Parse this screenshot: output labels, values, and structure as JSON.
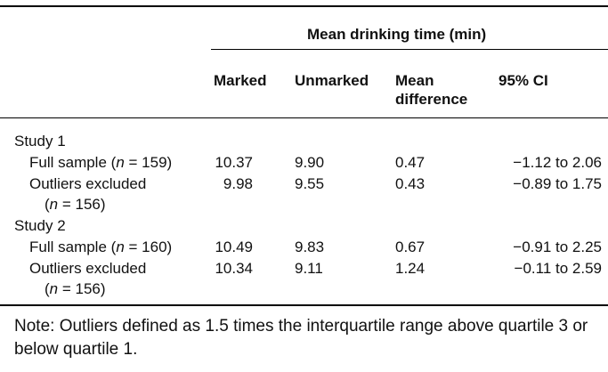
{
  "header": {
    "group_label": "Mean drinking time (min)",
    "columns": {
      "marked": "Marked",
      "unmarked": "Unmarked",
      "mean_diff_line1": "Mean",
      "mean_diff_line2": "difference",
      "ci": "95% CI"
    }
  },
  "studies": [
    {
      "label": "Study 1",
      "rows": [
        {
          "label_pre": "Full sample (",
          "label_n": "n",
          "label_post": " = 159)",
          "marked": "10.37",
          "unmarked": "9.90",
          "diff": "0.47",
          "ci": "−1.12 to 2.06"
        },
        {
          "label_line1": "Outliers excluded",
          "label_pre": "(",
          "label_n": "n",
          "label_post": " = 156)",
          "marked": "9.98",
          "unmarked": "9.55",
          "diff": "0.43",
          "ci": "−0.89 to 1.75"
        }
      ]
    },
    {
      "label": "Study 2",
      "rows": [
        {
          "label_pre": "Full sample (",
          "label_n": "n",
          "label_post": " = 160)",
          "marked": "10.49",
          "unmarked": "9.83",
          "diff": "0.67",
          "ci": "−0.91 to 2.25"
        },
        {
          "label_line1": "Outliers excluded",
          "label_pre": "(",
          "label_n": "n",
          "label_post": " = 156)",
          "marked": "10.34",
          "unmarked": "9.11",
          "diff": "1.24",
          "ci": "−0.11 to 2.59"
        }
      ]
    }
  ],
  "note": "Note: Outliers defined as 1.5 times the interquartile range above quartile 3 or below quartile 1."
}
